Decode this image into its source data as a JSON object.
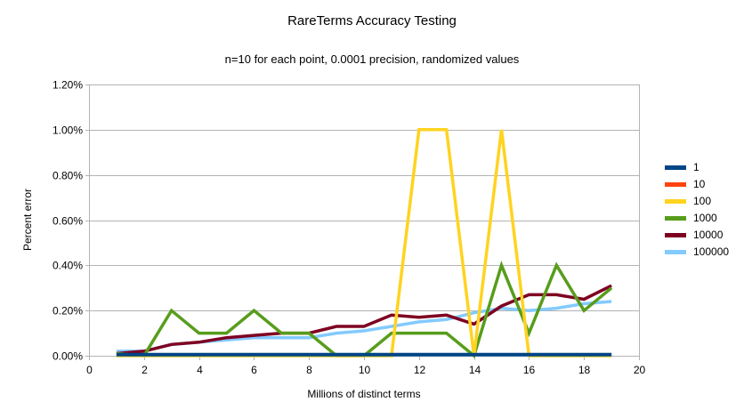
{
  "chart_data": {
    "type": "line",
    "title": "RareTerms Accuracy Testing",
    "subtitle": "n=10 for each point, 0.0001 precision, randomized values",
    "xlabel": "Millions of distinct terms",
    "ylabel": "Percent error",
    "y_unit": "percent",
    "xlim": [
      0,
      20
    ],
    "ylim": [
      0,
      1.2
    ],
    "x_ticks": [
      "0",
      "2",
      "4",
      "6",
      "8",
      "10",
      "12",
      "14",
      "16",
      "18",
      "20"
    ],
    "y_ticks": [
      "0.00%",
      "0.20%",
      "0.40%",
      "0.60%",
      "0.80%",
      "1.00%",
      "1.20%"
    ],
    "grid": "horizontal",
    "legend_position": "right",
    "x": [
      1,
      2,
      3,
      4,
      5,
      6,
      7,
      8,
      9,
      10,
      11,
      12,
      13,
      14,
      15,
      16,
      17,
      18,
      19
    ],
    "series": [
      {
        "name": "1",
        "color": "#004586",
        "values": [
          0.005,
          0.005,
          0.005,
          0.005,
          0.005,
          0.005,
          0.005,
          0.005,
          0.005,
          0.005,
          0.005,
          0.005,
          0.005,
          0.005,
          0.005,
          0.005,
          0.005,
          0.005,
          0.005
        ]
      },
      {
        "name": "10",
        "color": "#FF420E",
        "values": [
          0.005,
          0.005,
          0.005,
          0.005,
          0.005,
          0.005,
          0.005,
          0.005,
          0.005,
          0.005,
          0.005,
          0.005,
          0.005,
          0.005,
          0.005,
          0.005,
          0.005,
          0.005,
          0.005
        ]
      },
      {
        "name": "100",
        "color": "#FFD320",
        "values": [
          0.0,
          0.0,
          0.0,
          0.0,
          0.0,
          0.0,
          0.0,
          0.0,
          0.0,
          0.0,
          0.0,
          1.0,
          1.0,
          0.0,
          1.0,
          0.0,
          0.0,
          0.0,
          0.0
        ]
      },
      {
        "name": "1000",
        "color": "#579D1C",
        "values": [
          0.01,
          0.0,
          0.2,
          0.1,
          0.1,
          0.2,
          0.1,
          0.1,
          0.0,
          0.0,
          0.1,
          0.1,
          0.1,
          0.0,
          0.4,
          0.1,
          0.4,
          0.2,
          0.3
        ]
      },
      {
        "name": "10000",
        "color": "#7E0021",
        "values": [
          0.01,
          0.02,
          0.05,
          0.06,
          0.08,
          0.09,
          0.1,
          0.1,
          0.13,
          0.13,
          0.18,
          0.17,
          0.18,
          0.14,
          0.22,
          0.27,
          0.27,
          0.25,
          0.31
        ]
      },
      {
        "name": "100000",
        "color": "#83CAFF",
        "values": [
          0.02,
          0.02,
          0.05,
          0.06,
          0.07,
          0.08,
          0.08,
          0.08,
          0.1,
          0.11,
          0.13,
          0.15,
          0.16,
          0.19,
          0.21,
          0.2,
          0.21,
          0.23,
          0.24
        ]
      }
    ]
  },
  "colors": {
    "background": "#ffffff",
    "grid": "#b3b3b3",
    "text": "#000000"
  }
}
